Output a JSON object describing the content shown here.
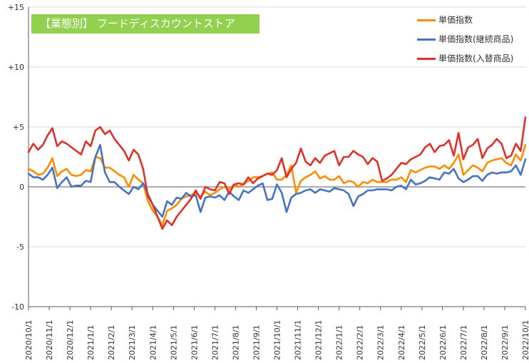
{
  "title": "【業態別】 フードディスカウントストア",
  "colors": {
    "series0": "#ff8c00",
    "series1": "#4472c4",
    "series2": "#e03028",
    "title_bg": "#92d050"
  },
  "chart_data": {
    "type": "line",
    "ylim": [
      -10,
      15
    ],
    "yticks": [
      {
        "value": 15,
        "label": "+15"
      },
      {
        "value": 10,
        "label": "+10"
      },
      {
        "value": 5,
        "label": "+5"
      },
      {
        "value": 0,
        "label": "0"
      },
      {
        "value": -5,
        "label": "-5"
      },
      {
        "value": -10,
        "label": "-10"
      }
    ],
    "xticks": [
      "2020/10/1",
      "2020/11/1",
      "2020/12/1",
      "2021/1/1",
      "2021/2/1",
      "2021/3/1",
      "2021/4/1",
      "2021/5/1",
      "2021/6/1",
      "2021/7/1",
      "2021/8/1",
      "2021/9/1",
      "2021/10/1",
      "2021/11/1",
      "2021/12/1",
      "2022/1/1",
      "2022/2/1",
      "2022/3/1",
      "2022/4/1",
      "2022/5/1",
      "2022/6/1",
      "2022/7/1",
      "2022/8/1",
      "2022/9/1",
      "2022/10/1"
    ],
    "legend_position": "top-right",
    "grid": "horizontal",
    "series": [
      {
        "name": "単価指数",
        "color": "#ff8c00",
        "values": [
          1.5,
          1.3,
          1.0,
          1.1,
          1.6,
          2.4,
          0.9,
          1.3,
          1.5,
          1.0,
          0.9,
          1.0,
          1.4,
          1.3,
          2.5,
          2.4,
          1.6,
          1.6,
          1.3,
          1.0,
          0.8,
          0.0,
          1.0,
          0.6,
          0.3,
          -1.2,
          -2.0,
          -2.5,
          -3.2,
          -2.0,
          -1.8,
          -1.5,
          -1.0,
          -0.8,
          -0.7,
          -0.5,
          -0.8,
          -0.4,
          -0.7,
          -0.5,
          -0.2,
          0.0,
          -0.2,
          0.2,
          0.0,
          0.2,
          0.5,
          0.8,
          0.8,
          0.9,
          1.1,
          1.2,
          0.6,
          0.6,
          1.0,
          1.8,
          -0.5,
          0.5,
          0.8,
          1.0,
          1.3,
          0.7,
          0.9,
          0.6,
          0.6,
          0.9,
          0.3,
          0.5,
          0.4,
          0.0,
          0.4,
          0.3,
          0.6,
          0.4,
          0.4,
          0.4,
          0.6,
          0.6,
          0.8,
          0.4,
          1.4,
          1.2,
          1.4,
          1.6,
          1.7,
          1.7,
          1.5,
          1.8,
          1.5,
          2.0,
          2.7,
          1.0,
          1.4,
          1.8,
          1.6,
          1.3,
          2.0,
          2.2,
          2.3,
          2.4,
          2.0,
          1.8,
          2.7,
          2.2,
          3.5
        ]
      },
      {
        "name": "単価指数(継続商品)",
        "color": "#4472c4",
        "values": [
          1.1,
          0.8,
          0.8,
          0.6,
          1.0,
          1.6,
          -0.1,
          0.4,
          0.8,
          0.0,
          0.1,
          0.1,
          0.5,
          0.4,
          2.5,
          3.5,
          1.2,
          0.4,
          0.4,
          0.0,
          -0.3,
          -0.6,
          0.0,
          -0.2,
          0.3,
          -0.6,
          -1.5,
          -2.0,
          -2.5,
          -1.2,
          -1.5,
          -0.9,
          -1.0,
          -0.5,
          -0.8,
          -0.7,
          -2.1,
          -0.9,
          -0.8,
          -0.9,
          -0.7,
          -1.1,
          -0.4,
          -0.8,
          -1.1,
          -0.3,
          -0.5,
          -0.2,
          0.1,
          0.3,
          -1.1,
          -1.0,
          0.2,
          -0.5,
          -2.1,
          -0.9,
          -0.6,
          -0.5,
          -0.3,
          -0.2,
          -0.5,
          -0.2,
          -0.3,
          -0.4,
          -0.1,
          -0.2,
          -0.3,
          -0.6,
          -1.6,
          -0.8,
          -0.6,
          -0.3,
          -0.3,
          -0.2,
          -0.2,
          -0.2,
          -0.3,
          0.0,
          0.1,
          -0.2,
          0.6,
          0.2,
          0.3,
          0.5,
          0.8,
          0.7,
          0.6,
          1.2,
          1.1,
          1.5,
          0.7,
          0.4,
          0.6,
          0.9,
          0.9,
          0.5,
          1.0,
          1.2,
          1.1,
          1.2,
          1.2,
          1.3,
          1.8,
          1.0,
          2.3
        ]
      },
      {
        "name": "単価指数(入替商品)",
        "color": "#e03028",
        "values": [
          2.9,
          3.6,
          3.1,
          3.5,
          4.3,
          4.9,
          3.4,
          3.8,
          3.6,
          3.3,
          3.0,
          2.7,
          3.8,
          3.4,
          4.7,
          5.0,
          4.4,
          4.7,
          4.0,
          3.5,
          3.0,
          2.2,
          3.1,
          2.7,
          1.5,
          -0.8,
          -1.5,
          -2.5,
          -3.5,
          -2.8,
          -3.2,
          -2.5,
          -2.0,
          -1.5,
          -1.0,
          -0.3,
          -1.0,
          0.0,
          -0.2,
          -0.3,
          0.4,
          0.3,
          -0.6,
          0.2,
          0.3,
          0.2,
          0.8,
          0.3,
          0.7,
          0.9,
          1.1,
          1.0,
          1.4,
          2.4,
          0.8,
          1.5,
          2.0,
          3.2,
          2.1,
          1.8,
          2.4,
          2.0,
          2.6,
          2.8,
          3.0,
          1.8,
          2.5,
          2.5,
          3.0,
          2.7,
          2.5,
          1.9,
          2.4,
          2.1,
          0.5,
          0.7,
          1.0,
          1.5,
          2.0,
          1.9,
          2.3,
          2.5,
          2.7,
          3.3,
          3.6,
          2.9,
          3.4,
          3.5,
          3.9,
          2.6,
          4.5,
          2.3,
          3.3,
          3.5,
          4.0,
          2.4,
          3.2,
          3.5,
          4.0,
          3.6,
          2.4,
          2.6,
          3.6,
          3.0,
          5.8
        ]
      }
    ]
  }
}
